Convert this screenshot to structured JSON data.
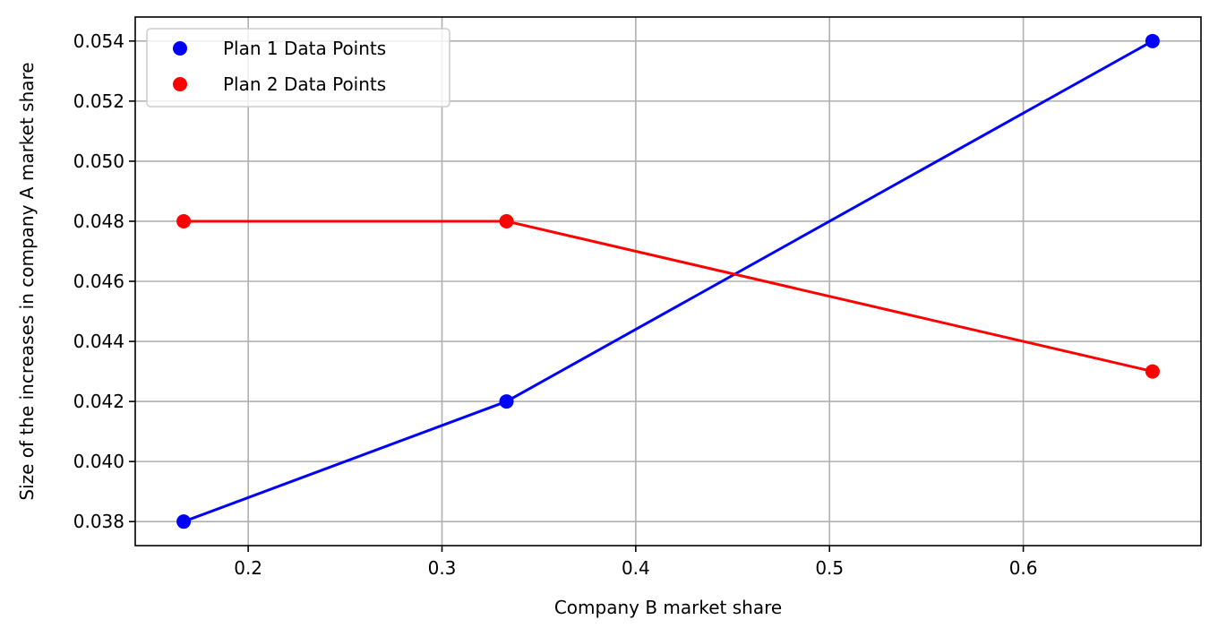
{
  "chart_data": {
    "type": "line",
    "title": "",
    "xlabel": "Company B market share",
    "ylabel": "Size of the increases in company A market share",
    "xlim": [
      0.1417,
      0.6917
    ],
    "ylim": [
      0.0372,
      0.0548
    ],
    "xticks": [
      0.2,
      0.3,
      0.4,
      0.5,
      0.6
    ],
    "xtick_labels": [
      "0.2",
      "0.3",
      "0.4",
      "0.5",
      "0.6"
    ],
    "yticks": [
      0.038,
      0.04,
      0.042,
      0.044,
      0.046,
      0.048,
      0.05,
      0.052,
      0.054
    ],
    "ytick_labels": [
      "0.038",
      "0.040",
      "0.042",
      "0.044",
      "0.046",
      "0.048",
      "0.050",
      "0.052",
      "0.054"
    ],
    "grid": true,
    "legend_position": "top-left",
    "series": [
      {
        "name": "Plan 1 Data Points",
        "color": "#0000ff",
        "x": [
          0.1667,
          0.3333,
          0.6667
        ],
        "y": [
          0.038,
          0.042,
          0.054
        ]
      },
      {
        "name": "Plan 2 Data Points",
        "color": "#ff0000",
        "x": [
          0.1667,
          0.3333,
          0.6667
        ],
        "y": [
          0.048,
          0.048,
          0.043
        ]
      }
    ]
  }
}
